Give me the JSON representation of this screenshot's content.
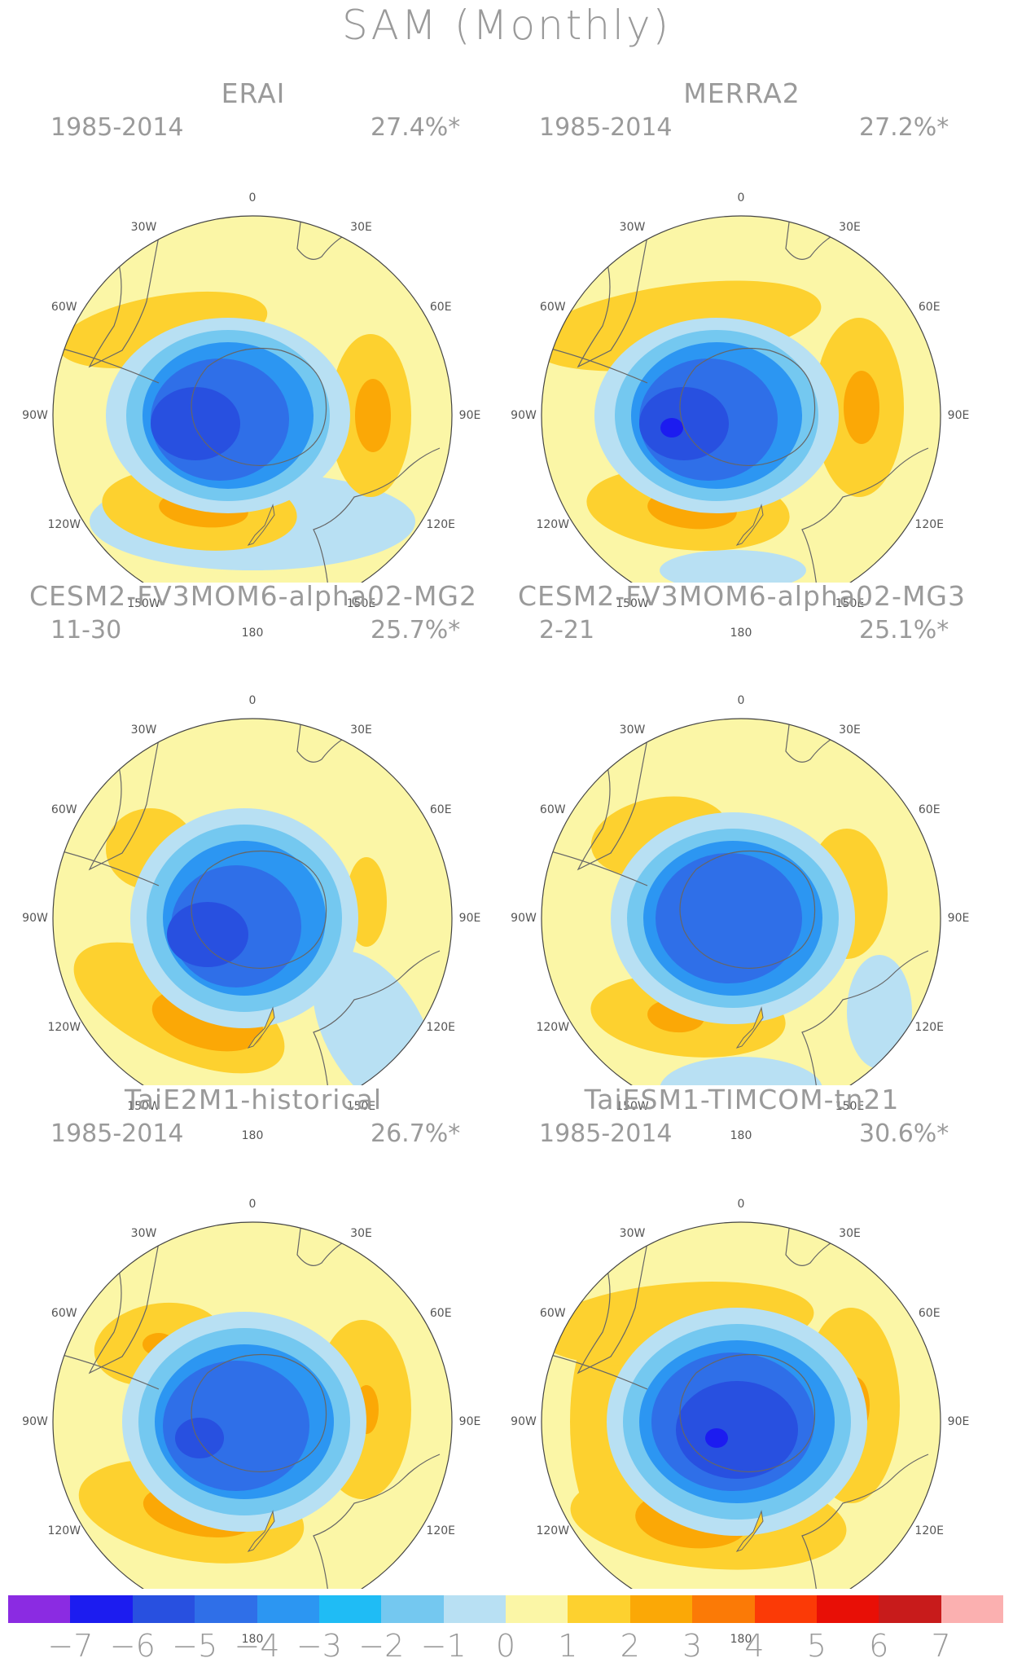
{
  "title": "SAM (Monthly)",
  "panels": [
    {
      "model": "ERAI",
      "period": "1985-2014",
      "variance": "27.4%*"
    },
    {
      "model": "MERRA2",
      "period": "1985-2014",
      "variance": "27.2%*"
    },
    {
      "model": "CESM2-FV3MOM6-alpha02-MG2",
      "period": "11-30",
      "variance": "25.7%*"
    },
    {
      "model": "CESM2-FV3MOM6-alpha02-MG3",
      "period": "2-21",
      "variance": "25.1%*"
    },
    {
      "model": "TaiE2M1-historical",
      "period": "1985-2014",
      "variance": "26.7%*"
    },
    {
      "model": "TaiESM1-TIMCOM-tn21",
      "period": "1985-2014",
      "variance": "30.6%*"
    }
  ],
  "longitude_labels": [
    "0",
    "30E",
    "60E",
    "90E",
    "120E",
    "150E",
    "180",
    "150W",
    "120W",
    "90W",
    "60W",
    "30W"
  ],
  "colorbar": {
    "colors": [
      "#8b2be2",
      "#1c1cf0",
      "#2850e0",
      "#2f6fe8",
      "#2c96f2",
      "#1fbcf5",
      "#74c8f0",
      "#b8e0f3",
      "#fbf6a6",
      "#fdd12f",
      "#fba806",
      "#fb7a06",
      "#fb3a06",
      "#e80f06",
      "#c81b1b",
      "#fbb0b0"
    ],
    "labels": [
      "-7",
      "-6",
      "-5",
      "-4",
      "-3",
      "-2",
      "-1",
      "0",
      "1",
      "2",
      "3",
      "4",
      "5",
      "6",
      "7"
    ]
  },
  "colors": {
    "text": "#9a9a9a",
    "land_outline": "#666666",
    "pos1": "#fbf6a6",
    "pos2": "#fdd12f",
    "pos3": "#fba806",
    "neg1": "#b8e0f3",
    "neg2": "#74c8f0",
    "neg3": "#2c96f2",
    "neg4": "#2f6fe8",
    "neg5": "#2850e0",
    "neg6": "#1c1cf0"
  }
}
